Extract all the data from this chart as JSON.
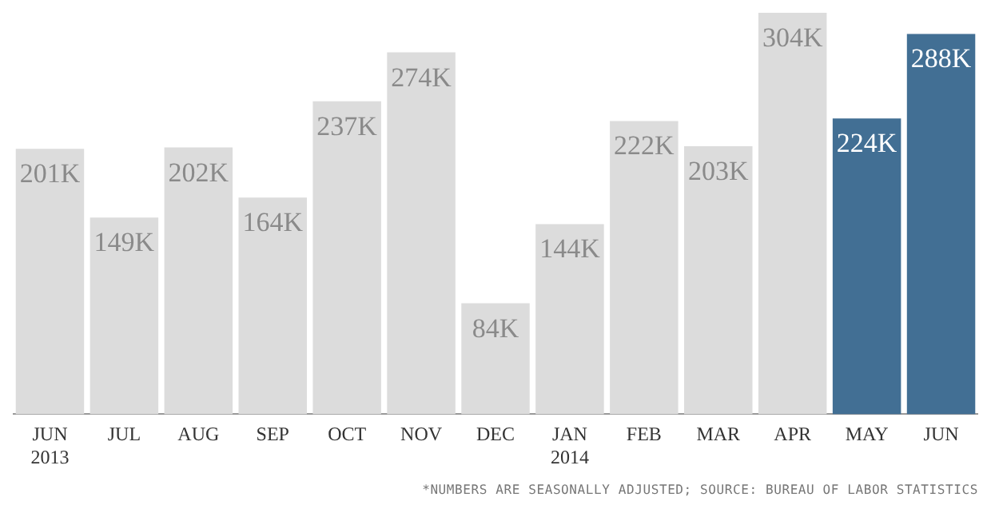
{
  "chart_data": {
    "type": "bar",
    "categories": [
      "JUN 2013",
      "JUL",
      "AUG",
      "SEP",
      "OCT",
      "NOV",
      "DEC",
      "JAN 2014",
      "FEB",
      "MAR",
      "APR",
      "MAY",
      "JUN"
    ],
    "values": [
      201,
      149,
      202,
      164,
      237,
      274,
      84,
      144,
      222,
      203,
      304,
      224,
      288
    ],
    "value_labels": [
      "201K",
      "149K",
      "202K",
      "164K",
      "237K",
      "274K",
      "84K",
      "144K",
      "222K",
      "203K",
      "304K",
      "224K",
      "288K"
    ],
    "colors": [
      "#dcdcdc",
      "#dcdcdc",
      "#dcdcdc",
      "#dcdcdc",
      "#dcdcdc",
      "#dcdcdc",
      "#dcdcdc",
      "#dcdcdc",
      "#dcdcdc",
      "#dcdcdc",
      "#dcdcdc",
      "#426f94",
      "#426f94"
    ],
    "ylim": [
      0,
      304
    ],
    "annotations": [
      "*NUMBERS ARE SEASONALLY ADJUSTED; SOURCE: BUREAU OF LABOR STATISTICS"
    ]
  }
}
